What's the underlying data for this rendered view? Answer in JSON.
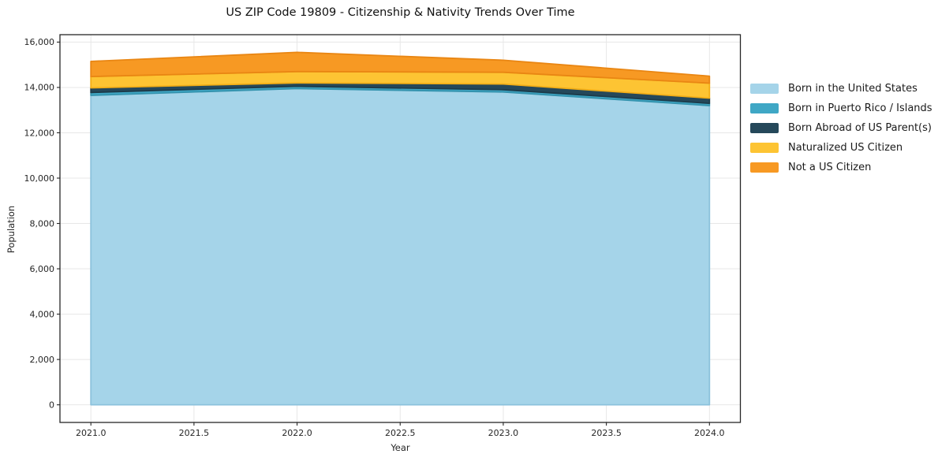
{
  "title": "US ZIP Code 19809 - Citizenship & Nativity Trends Over Time",
  "chart_data": {
    "type": "area",
    "stacked": true,
    "title": "US ZIP Code 19809 - Citizenship & Nativity Trends Over Time",
    "xlabel": "Year",
    "ylabel": "Population",
    "x": [
      2021,
      2022,
      2023,
      2024
    ],
    "series": [
      {
        "name": "Born in the United States",
        "color": "#a5d4e9",
        "edge": "#8cc2dc",
        "values": [
          13650,
          13950,
          13800,
          13200
        ]
      },
      {
        "name": "Born in Puerto Rico / Islands",
        "color": "#3fa7c5",
        "edge": "#3493ae",
        "values": [
          130,
          100,
          100,
          100
        ]
      },
      {
        "name": "Born Abroad of US Parent(s)",
        "color": "#25485a",
        "edge": "#1d3b4a",
        "values": [
          200,
          150,
          250,
          230
        ]
      },
      {
        "name": "Naturalized US Citizen",
        "color": "#fdc433",
        "edge": "#f2ae17",
        "values": [
          500,
          500,
          520,
          660
        ]
      },
      {
        "name": "Not a US Citizen",
        "color": "#f79923",
        "edge": "#e98613",
        "values": [
          670,
          850,
          530,
          310
        ]
      }
    ],
    "totals": [
      15150,
      15550,
      15200,
      14500
    ],
    "xlim": [
      2020.85,
      2024.15
    ],
    "ylim": [
      -777.5,
      16327.5
    ],
    "x_ticks": {
      "values": [
        2021.0,
        2021.5,
        2022.0,
        2022.5,
        2023.0,
        2023.5,
        2024.0
      ],
      "labels": [
        "2021.0",
        "2021.5",
        "2022.0",
        "2022.5",
        "2023.0",
        "2023.5",
        "2024.0"
      ]
    },
    "y_ticks": {
      "values": [
        0,
        2000,
        4000,
        6000,
        8000,
        10000,
        12000,
        14000,
        16000
      ],
      "labels": [
        "0",
        "2,000",
        "4,000",
        "6,000",
        "8,000",
        "10,000",
        "12,000",
        "14,000",
        "16,000"
      ]
    },
    "grid": true,
    "grid_color": "#e7e7e7",
    "spine_color": "#262626",
    "tick_label_color": "#262626",
    "legend_position": "right"
  }
}
